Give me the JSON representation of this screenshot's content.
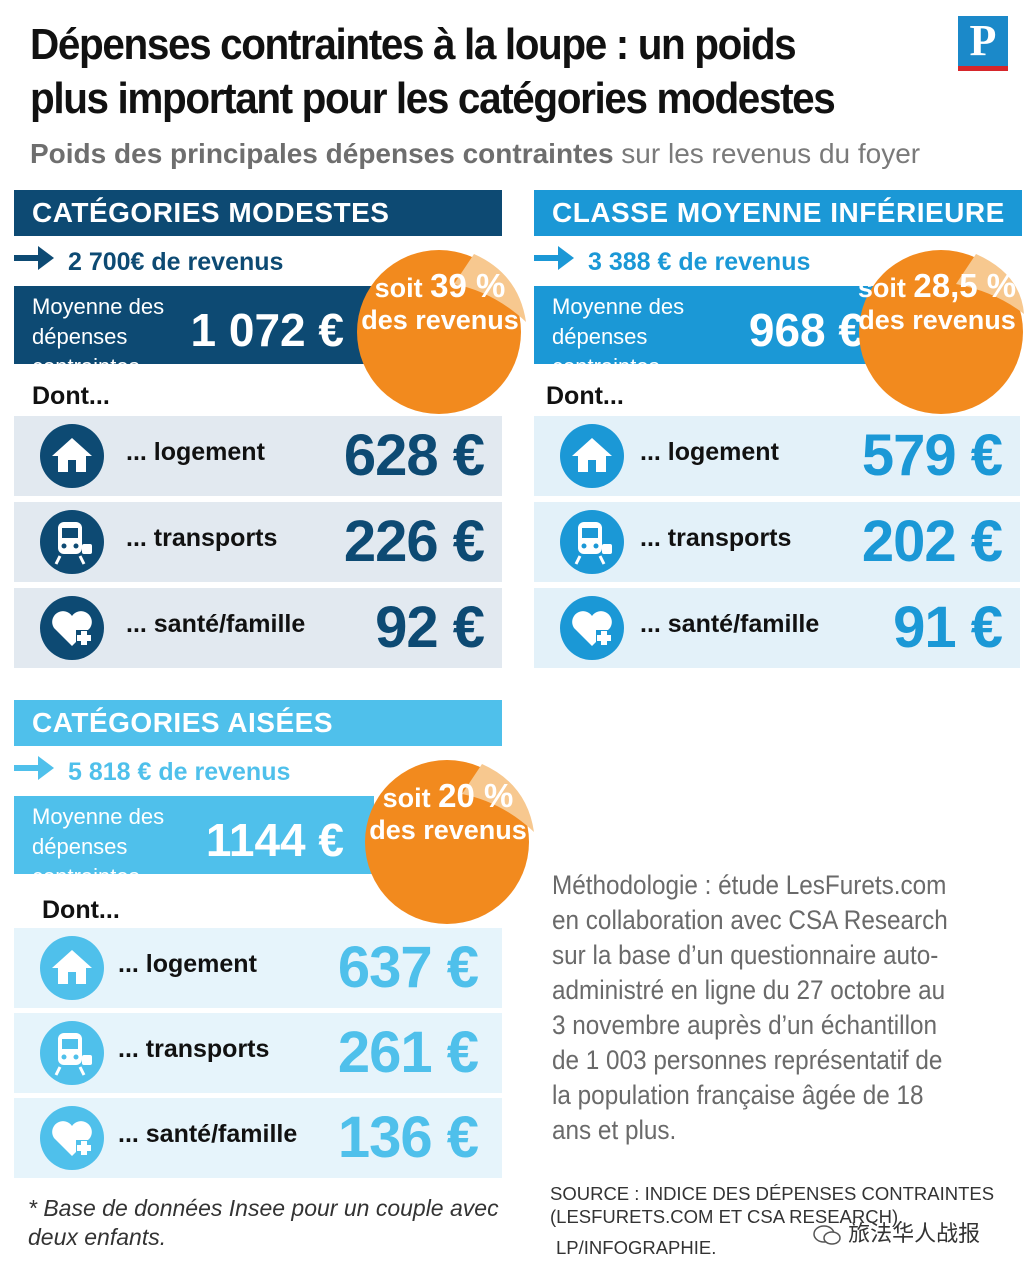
{
  "title": "Dépenses contraintes à la loupe : un poids plus important pour les catégories modestes",
  "logo_letter": "P",
  "subtitle": {
    "bold": "Poids des principales dépenses contraintes",
    "normal": " sur les revenus du foyer"
  },
  "dont_label": "Dont...",
  "avg_label": "Moyenne des dépenses contraintes",
  "sticker_prefix": "soit ",
  "sticker_suffix": "des revenus",
  "row_labels": {
    "logement": "... logement",
    "transports": "... transports",
    "sante": "... santé/famille"
  },
  "panels": [
    {
      "header": "CATÉGORIES MODESTES",
      "revenue": "2 700€ de revenus",
      "average": "1 072 €",
      "percent": "39 %",
      "logement": "628 €",
      "transports": "226 €",
      "sante": "92 €"
    },
    {
      "header": "CLASSE MOYENNE INFÉRIEURE",
      "revenue": "3 388 € de revenus",
      "average": "968 €",
      "percent": "28,5 %",
      "logement": "579 €",
      "transports": "202 €",
      "sante": "91 €"
    },
    {
      "header": "CATÉGORIES AISÉES",
      "revenue": "5 818 € de revenus",
      "average": "1144 €",
      "percent": "20 %",
      "logement": "637 €",
      "transports": "261 €",
      "sante": "136 €"
    }
  ],
  "methodology": "Méthodologie : étude LesFurets.com en collaboration avec CSA Research sur la base d’un questionnaire auto-administré en ligne du 27 octobre au 3 novembre auprès d’un échantillon de 1 003 personnes représentatif de la population française âgée de 18 ans et plus.",
  "source": "SOURCE : INDICE DES DÉPENSES CONTRAINTES (LESFURETS.COM ET CSA RESEARCH).",
  "credit": "LP/INFOGRAPHIE.",
  "footnote": "* Base de données Insee pour un couple avec deux enfants.",
  "watermark": "旅法华人战报",
  "colors": {
    "navy": "#0d4a73",
    "blue": "#1b98d6",
    "light": "#4fc0eb",
    "sticker": "#f28a1e",
    "row_bg_1": "#e2e9f0",
    "row_bg_2": "#e3f1f9",
    "row_bg_3": "#e6f4fb"
  }
}
